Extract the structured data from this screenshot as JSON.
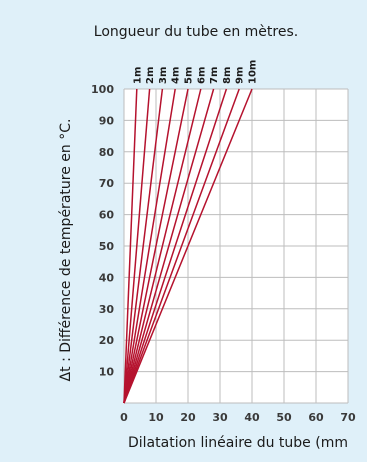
{
  "chart_data": {
    "type": "line",
    "title": "Longueur du tube en mètres.",
    "xlabel": "Dilatation linéaire du tube (mm",
    "ylabel": "Δt : Différence de température en °C.",
    "xlim": [
      0,
      70
    ],
    "ylim": [
      0,
      100
    ],
    "x_ticks": [
      0,
      10,
      20,
      30,
      40,
      50,
      60,
      70
    ],
    "y_ticks": [
      10,
      20,
      30,
      40,
      50,
      60,
      70,
      80,
      90,
      100
    ],
    "grid": true,
    "line_color": "#b5122e",
    "series": [
      {
        "name": "1m",
        "x": [
          0,
          4
        ],
        "y": [
          0,
          100
        ]
      },
      {
        "name": "2m",
        "x": [
          0,
          8
        ],
        "y": [
          0,
          100
        ]
      },
      {
        "name": "3m",
        "x": [
          0,
          12
        ],
        "y": [
          0,
          100
        ]
      },
      {
        "name": "4m",
        "x": [
          0,
          16
        ],
        "y": [
          0,
          100
        ]
      },
      {
        "name": "5m",
        "x": [
          0,
          20
        ],
        "y": [
          0,
          100
        ]
      },
      {
        "name": "6m",
        "x": [
          0,
          24
        ],
        "y": [
          0,
          100
        ]
      },
      {
        "name": "7m",
        "x": [
          0,
          28
        ],
        "y": [
          0,
          100
        ]
      },
      {
        "name": "8m",
        "x": [
          0,
          32
        ],
        "y": [
          0,
          100
        ]
      },
      {
        "name": "9m",
        "x": [
          0,
          36
        ],
        "y": [
          0,
          100
        ]
      },
      {
        "name": "10m",
        "x": [
          0,
          40
        ],
        "y": [
          0,
          100
        ]
      }
    ]
  }
}
